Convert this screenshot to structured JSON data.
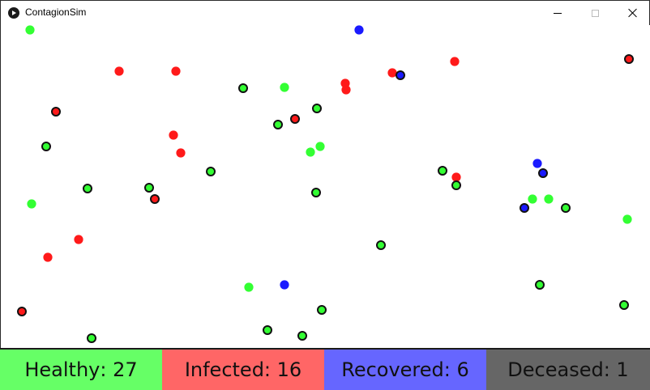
{
  "window": {
    "title": "ContagionSim",
    "icon": "play-circle-icon",
    "controls": {
      "minimize": "minimize-icon",
      "maximize": "maximize-icon",
      "close": "close-icon"
    }
  },
  "colors": {
    "healthy": "#33ff33",
    "infected": "#ff1a1a",
    "recovered": "#1a1aff",
    "healthy_panel": "#66ff66",
    "infected_panel": "#ff6666",
    "recovered_panel": "#6666ff",
    "deceased_panel": "#666666"
  },
  "stats": [
    {
      "label": "Healthy",
      "value": "27"
    },
    {
      "label": "Infected",
      "value": "16"
    },
    {
      "label": "Recovered",
      "value": "6"
    },
    {
      "label": "Deceased",
      "value": "1"
    }
  ]
}
